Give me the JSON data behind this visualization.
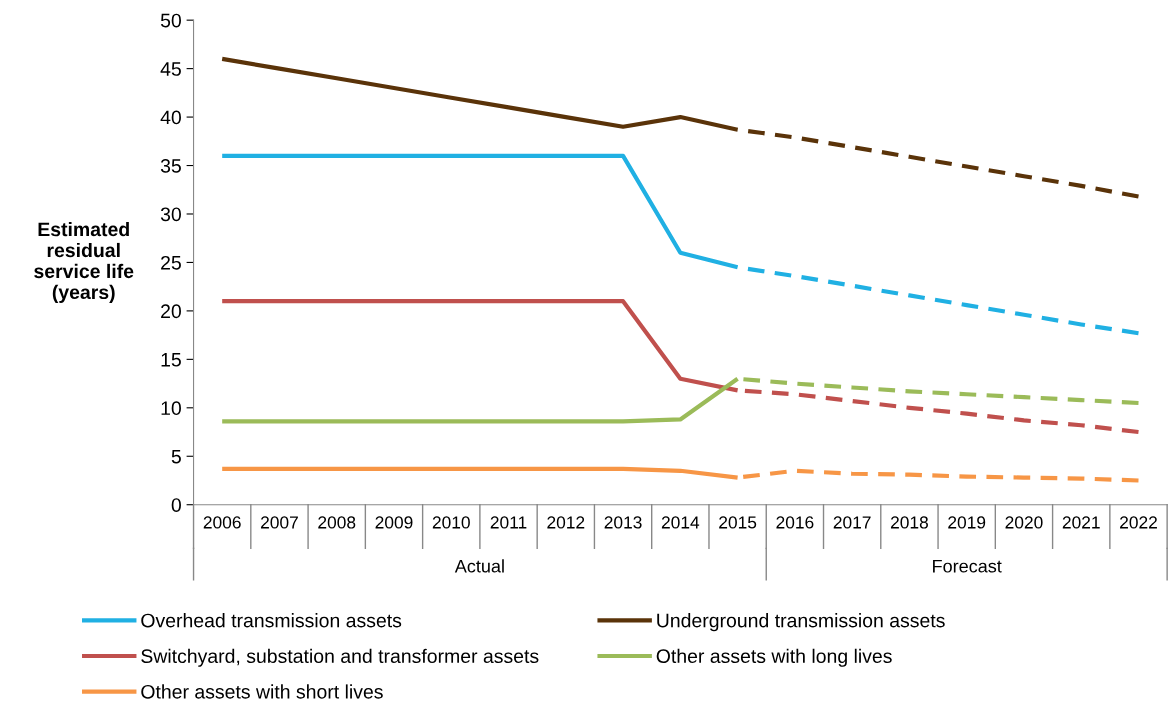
{
  "chart_data": {
    "type": "line",
    "ylabel": "Estimated\nresidual\nservice life\n(years)",
    "categories": [
      "2006",
      "2007",
      "2008",
      "2009",
      "2010",
      "2011",
      "2012",
      "2013",
      "2014",
      "2015",
      "2016",
      "2017",
      "2018",
      "2019",
      "2020",
      "2021",
      "2022"
    ],
    "series": [
      {
        "name": "Overhead transmission assets",
        "color": "#20b0e3",
        "line_style": "solid",
        "values": [
          36,
          36,
          36,
          36,
          36,
          36,
          36,
          36,
          26,
          24.5,
          null,
          null,
          null,
          null,
          null,
          null,
          null
        ]
      },
      {
        "name": "Underground transmission assets",
        "color": "#5a3309",
        "line_style": "solid",
        "values": [
          46,
          45,
          44,
          43,
          42,
          41,
          40,
          39,
          40,
          38.7,
          null,
          null,
          null,
          null,
          null,
          null,
          null
        ]
      },
      {
        "name": "Switchyard, substation and transformer assets",
        "color": "#c0504d",
        "line_style": "solid",
        "values": [
          21,
          21,
          21,
          21,
          21,
          21,
          21,
          21,
          13,
          11.8,
          null,
          null,
          null,
          null,
          null,
          null,
          null
        ]
      },
      {
        "name": "Other assets with long lives",
        "color": "#9bbb59",
        "line_style": "solid",
        "values": [
          8.6,
          8.6,
          8.6,
          8.6,
          8.6,
          8.6,
          8.6,
          8.6,
          8.8,
          13,
          null,
          null,
          null,
          null,
          null,
          null,
          null
        ]
      },
      {
        "name": "Other assets with short lives",
        "color": "#f79646",
        "line_style": "solid",
        "values": [
          3.7,
          3.7,
          3.7,
          3.7,
          3.7,
          3.7,
          3.7,
          3.7,
          3.5,
          2.8,
          null,
          null,
          null,
          null,
          null,
          null,
          null
        ]
      },
      {
        "color": "#20b0e3",
        "line_style": "dashed",
        "values": [
          null,
          null,
          null,
          null,
          null,
          null,
          null,
          null,
          null,
          24.5,
          23.6,
          22.6,
          21.6,
          20.6,
          19.6,
          18.6,
          17.7
        ]
      },
      {
        "color": "#5a3309",
        "line_style": "dashed",
        "values": [
          null,
          null,
          null,
          null,
          null,
          null,
          null,
          null,
          null,
          38.7,
          37.9,
          36.9,
          35.9,
          34.9,
          33.9,
          32.9,
          31.8
        ]
      },
      {
        "color": "#c0504d",
        "line_style": "dashed",
        "values": [
          null,
          null,
          null,
          null,
          null,
          null,
          null,
          null,
          null,
          11.8,
          11.4,
          10.7,
          10.0,
          9.4,
          8.7,
          8.2,
          7.5
        ]
      },
      {
        "color": "#9bbb59",
        "line_style": "dashed",
        "values": [
          null,
          null,
          null,
          null,
          null,
          null,
          null,
          null,
          null,
          13,
          12.5,
          12.1,
          11.7,
          11.4,
          11.1,
          10.8,
          10.5
        ]
      },
      {
        "color": "#f79646",
        "line_style": "dashed",
        "values": [
          null,
          null,
          null,
          null,
          null,
          null,
          null,
          null,
          null,
          2.8,
          3.5,
          3.2,
          3.1,
          2.9,
          2.8,
          2.7,
          2.5
        ]
      }
    ],
    "annotations": [
      "Actual",
      "Forecast"
    ],
    "ylim": [
      0,
      50
    ],
    "yticks": [
      0,
      5,
      10,
      15,
      20,
      25,
      30,
      35,
      40,
      45,
      50
    ],
    "grid": false,
    "legend": "bottom",
    "marker": "none"
  }
}
